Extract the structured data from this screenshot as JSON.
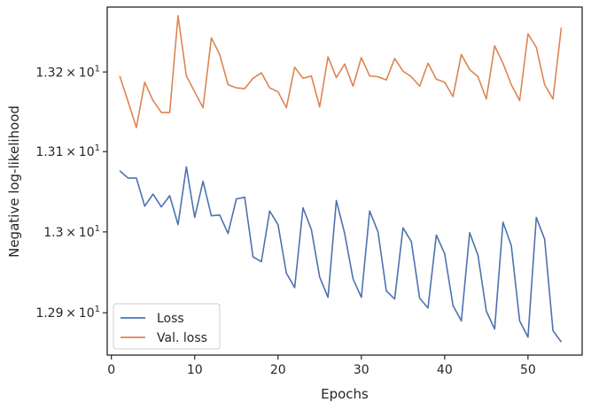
{
  "chart_data": {
    "type": "line",
    "xlabel": "Epochs",
    "ylabel": "Negative log-likelihood",
    "xlim": [
      -0.5,
      56.5
    ],
    "ylim": [
      12.848,
      13.282
    ],
    "y_log_scale": true,
    "grid": false,
    "legend_placement": "lower-left",
    "x_ticks": [
      0,
      10,
      20,
      30,
      40,
      50
    ],
    "x_tick_labels": [
      "0",
      "10",
      "20",
      "30",
      "40",
      "50"
    ],
    "y_ticks": [
      {
        "value": 12.9,
        "mantissa": "1.29",
        "exponent": "1"
      },
      {
        "value": 13.0,
        "mantissa": "1.3",
        "exponent": "1"
      },
      {
        "value": 13.1,
        "mantissa": "1.31",
        "exponent": "1"
      },
      {
        "value": 13.2,
        "mantissa": "1.32",
        "exponent": "1"
      }
    ],
    "x": [
      1,
      2,
      3,
      4,
      5,
      6,
      7,
      8,
      9,
      10,
      11,
      12,
      13,
      14,
      15,
      16,
      17,
      18,
      19,
      20,
      21,
      22,
      23,
      24,
      25,
      26,
      27,
      28,
      29,
      30,
      31,
      32,
      33,
      34,
      35,
      36,
      37,
      38,
      39,
      40,
      41,
      42,
      43,
      44,
      45,
      46,
      47,
      48,
      49,
      50,
      51,
      52,
      53,
      54
    ],
    "series": [
      {
        "name": "Loss",
        "color": "#4c72b0",
        "values": [
          13.076,
          13.067,
          13.067,
          13.032,
          13.047,
          13.031,
          13.045,
          13.009,
          13.081,
          13.018,
          13.063,
          13.02,
          13.021,
          12.998,
          13.041,
          13.043,
          12.969,
          12.963,
          13.026,
          13.009,
          12.949,
          12.931,
          13.03,
          13.003,
          12.944,
          12.919,
          13.039,
          12.998,
          12.942,
          12.919,
          13.026,
          13.0,
          12.927,
          12.917,
          13.005,
          12.988,
          12.918,
          12.906,
          12.996,
          12.973,
          12.909,
          12.89,
          12.999,
          12.971,
          12.902,
          12.88,
          13.012,
          12.983,
          12.89,
          12.87,
          13.018,
          12.991,
          12.878,
          12.864
        ]
      },
      {
        "name": "Val. loss",
        "color": "#dd8452",
        "values": [
          13.195,
          13.163,
          13.13,
          13.187,
          13.164,
          13.149,
          13.149,
          13.271,
          13.195,
          13.175,
          13.155,
          13.243,
          13.222,
          13.184,
          13.18,
          13.179,
          13.192,
          13.199,
          13.18,
          13.175,
          13.155,
          13.206,
          13.192,
          13.195,
          13.156,
          13.219,
          13.193,
          13.21,
          13.182,
          13.218,
          13.195,
          13.194,
          13.19,
          13.217,
          13.201,
          13.194,
          13.182,
          13.211,
          13.191,
          13.187,
          13.169,
          13.222,
          13.203,
          13.194,
          13.166,
          13.233,
          13.211,
          13.184,
          13.164,
          13.248,
          13.231,
          13.184,
          13.166,
          13.256
        ]
      }
    ]
  }
}
